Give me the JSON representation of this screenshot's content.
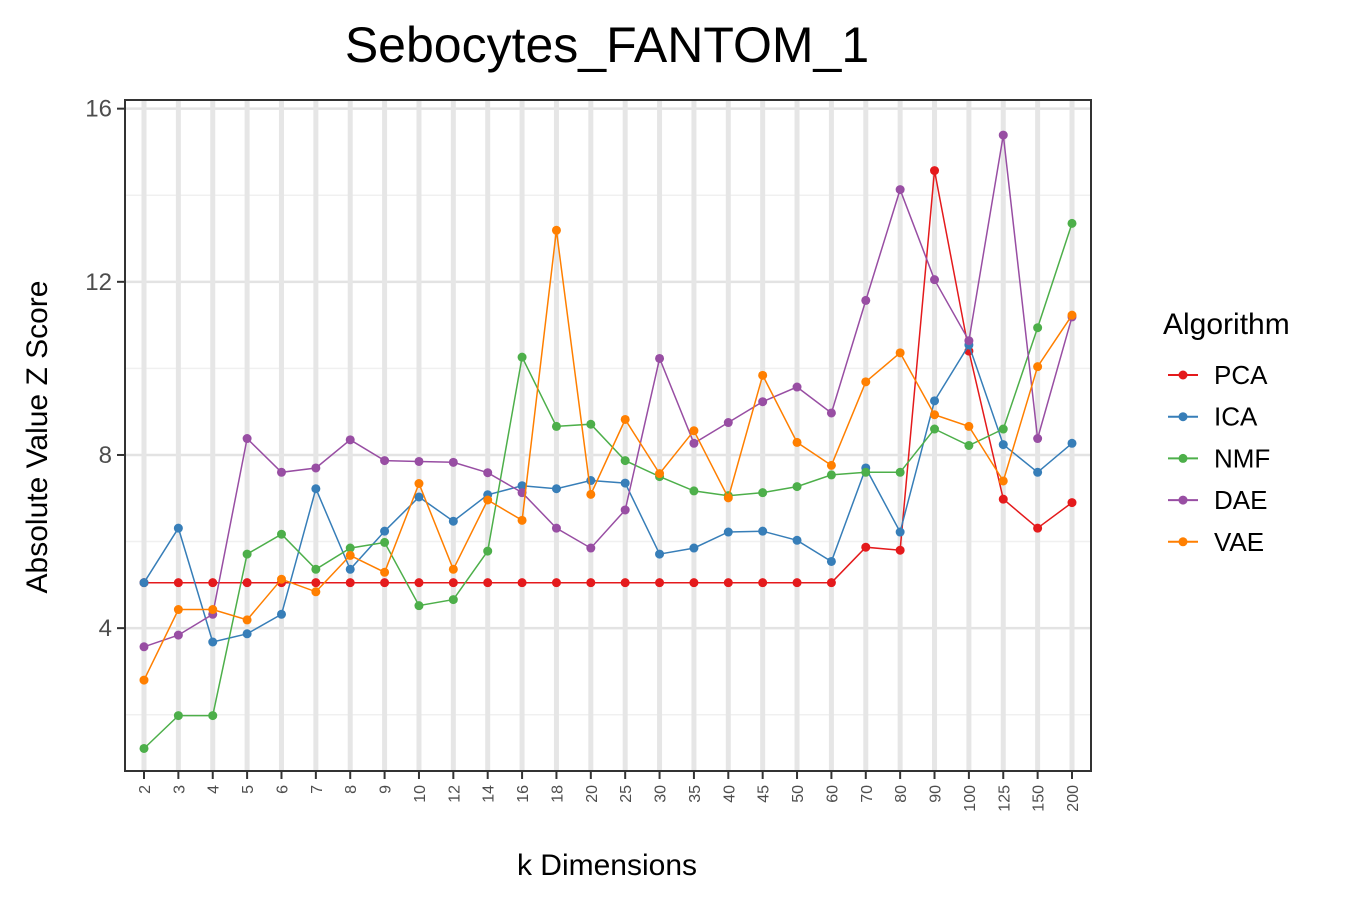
{
  "chart_data": {
    "type": "line",
    "title": "Sebocytes_FANTOM_1",
    "xlabel": "k Dimensions",
    "ylabel": "Absolute Value Z Score",
    "categories": [
      "2",
      "3",
      "4",
      "5",
      "6",
      "7",
      "8",
      "9",
      "10",
      "12",
      "14",
      "16",
      "18",
      "20",
      "25",
      "30",
      "35",
      "40",
      "45",
      "50",
      "60",
      "70",
      "80",
      "90",
      "100",
      "125",
      "150",
      "200"
    ],
    "ylim": [
      0.7,
      16.2
    ],
    "yticks": [
      4,
      8,
      12,
      16
    ],
    "ytick_labels": [
      "4",
      "8",
      "12",
      "16"
    ],
    "grid": true,
    "legend": {
      "title": "Algorithm",
      "position": "right"
    },
    "series": [
      {
        "name": "PCA",
        "color": "#E41A1C",
        "values": [
          5.05,
          5.05,
          5.05,
          5.05,
          5.05,
          5.05,
          5.05,
          5.05,
          5.05,
          5.05,
          5.05,
          5.05,
          5.05,
          5.05,
          5.05,
          5.05,
          5.05,
          5.05,
          5.05,
          5.05,
          5.05,
          5.87,
          5.8,
          14.57,
          10.4,
          6.98,
          6.31,
          6.9
        ]
      },
      {
        "name": "ICA",
        "color": "#377EB8",
        "values": [
          5.05,
          6.31,
          3.68,
          3.87,
          4.32,
          7.22,
          5.36,
          6.24,
          7.03,
          6.47,
          7.08,
          7.29,
          7.22,
          7.41,
          7.35,
          5.71,
          5.85,
          6.22,
          6.24,
          6.03,
          5.54,
          7.7,
          6.22,
          9.25,
          10.54,
          8.24,
          7.6,
          8.27
        ]
      },
      {
        "name": "NMF",
        "color": "#4DAF4A",
        "values": [
          1.22,
          1.98,
          1.98,
          5.71,
          6.17,
          5.36,
          5.85,
          5.98,
          4.52,
          4.66,
          5.78,
          10.26,
          8.66,
          8.71,
          7.87,
          7.5,
          7.17,
          7.06,
          7.13,
          7.27,
          7.54,
          7.6,
          7.6,
          8.6,
          8.22,
          8.6,
          10.94,
          13.35
        ]
      },
      {
        "name": "DAE",
        "color": "#984EA3",
        "values": [
          3.57,
          3.84,
          4.32,
          8.38,
          7.6,
          7.7,
          8.35,
          7.87,
          7.85,
          7.83,
          7.59,
          7.13,
          6.31,
          5.85,
          6.73,
          10.23,
          8.27,
          8.75,
          9.23,
          9.57,
          8.97,
          11.57,
          14.13,
          12.05,
          10.64,
          15.39,
          8.38,
          11.19
        ]
      },
      {
        "name": "VAE",
        "color": "#FF7F00",
        "values": [
          2.8,
          4.43,
          4.43,
          4.19,
          5.13,
          4.84,
          5.68,
          5.29,
          7.34,
          5.36,
          6.96,
          6.49,
          13.19,
          7.09,
          8.82,
          7.57,
          8.56,
          7.01,
          9.84,
          8.29,
          7.76,
          9.69,
          10.36,
          8.93,
          8.66,
          7.4,
          10.04,
          11.23
        ]
      }
    ]
  }
}
